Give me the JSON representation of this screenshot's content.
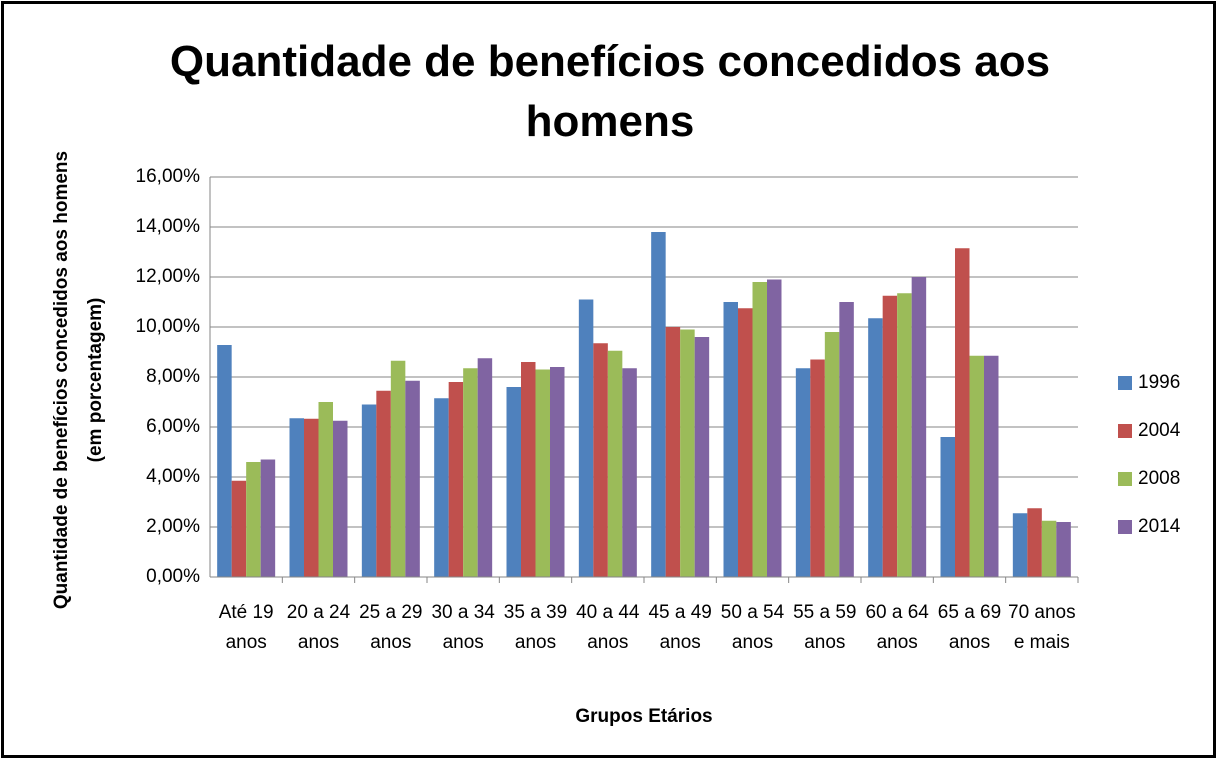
{
  "chart_data": {
    "type": "bar",
    "title": "Quantidade de benefícios concedidos aos homens",
    "y_label": [
      "Quantidade de benefícios concedidos aos homens",
      "(em porcentagem)"
    ],
    "x_label": "Grupos Etários",
    "categories": [
      "Até 19 anos",
      "20 a 24 anos",
      "25 a 29 anos",
      "30 a 34 anos",
      "35 a 39 anos",
      "40 a 44 anos",
      "45 a 49 anos",
      "50 a 54 anos",
      "55 a 59 anos",
      "60 a 64 anos",
      "65 a 69 anos",
      "70 anos e mais"
    ],
    "series": [
      {
        "name": "1996",
        "color": "#4f81bd",
        "values": [
          9.28,
          6.35,
          6.9,
          7.15,
          7.6,
          11.1,
          13.8,
          11.0,
          8.35,
          10.35,
          5.6,
          2.55
        ]
      },
      {
        "name": "2004",
        "color": "#c0504d",
        "values": [
          3.85,
          6.33,
          7.45,
          7.8,
          8.6,
          9.35,
          10.0,
          10.75,
          8.7,
          11.25,
          13.15,
          2.75
        ]
      },
      {
        "name": "2008",
        "color": "#9bbb59",
        "values": [
          4.6,
          7.0,
          8.65,
          8.35,
          8.3,
          9.05,
          9.9,
          11.8,
          9.8,
          11.35,
          8.85,
          2.25
        ]
      },
      {
        "name": "2014",
        "color": "#8064a2",
        "values": [
          4.7,
          6.25,
          7.85,
          8.75,
          8.4,
          8.35,
          9.6,
          11.9,
          11.0,
          12.0,
          8.85,
          2.2
        ]
      }
    ],
    "ylim": [
      0,
      16
    ],
    "yticks": [
      {
        "value": 0,
        "label": "0,00%"
      },
      {
        "value": 2,
        "label": "2,00%"
      },
      {
        "value": 4,
        "label": "4,00%"
      },
      {
        "value": 6,
        "label": "6,00%"
      },
      {
        "value": 8,
        "label": "8,00%"
      },
      {
        "value": 10,
        "label": "10,00%"
      },
      {
        "value": 12,
        "label": "12,00%"
      },
      {
        "value": 14,
        "label": "14,00%"
      },
      {
        "value": 16,
        "label": "16,00%"
      }
    ],
    "grid": true,
    "legend": "right"
  }
}
